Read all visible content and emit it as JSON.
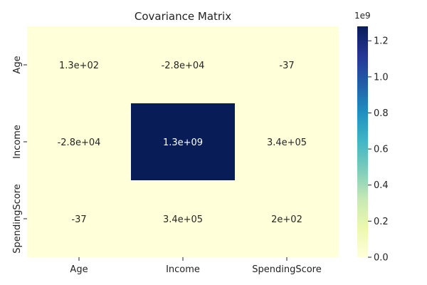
{
  "chart_data": {
    "type": "heatmap",
    "title": "Covariance Matrix",
    "x_labels": [
      "Age",
      "Income",
      "SpendingScore"
    ],
    "y_labels": [
      "Age",
      "Income",
      "SpendingScore"
    ],
    "values": [
      [
        130,
        -28000,
        -37
      ],
      [
        -28000,
        1300000000,
        340000
      ],
      [
        -37,
        340000,
        200
      ]
    ],
    "annotations": [
      [
        "1.3e+02",
        "-2.8e+04",
        "-37"
      ],
      [
        "-2.8e+04",
        "1.3e+09",
        "3.4e+05"
      ],
      [
        "-37",
        "3.4e+05",
        "2e+02"
      ]
    ],
    "colormap": "YlGnBu",
    "colorbar": {
      "range": [
        -28000,
        1280000000
      ],
      "ticks": [
        0,
        0.2,
        0.4,
        0.6,
        0.8,
        1.0,
        1.2
      ],
      "tick_labels": [
        "0.0",
        "0.2",
        "0.4",
        "0.6",
        "0.8",
        "1.0",
        "1.2"
      ],
      "multiplier": "1e9"
    },
    "colors": {
      "low": "#ffffd9",
      "high": "#081d58"
    }
  }
}
